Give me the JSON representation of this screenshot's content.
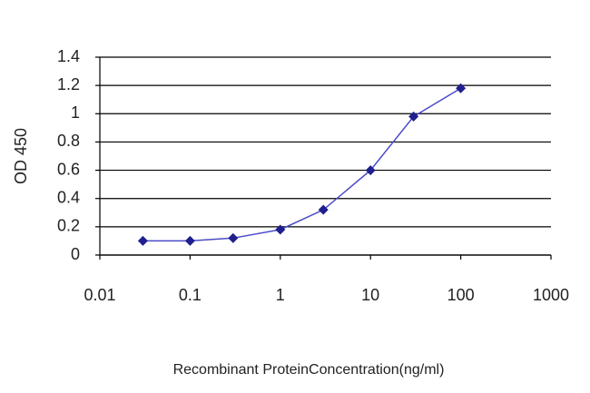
{
  "chart_data": {
    "type": "line",
    "x_label": "Recombinant ProteinConcentration(ng/ml)",
    "y_label": "OD 450",
    "x": [
      0.03,
      0.1,
      0.3,
      1,
      3,
      10,
      30,
      100
    ],
    "values": [
      0.1,
      0.1,
      0.12,
      0.18,
      0.32,
      0.6,
      0.98,
      1.18
    ],
    "color": "#1f1f8f",
    "line_color": "#4a4ac8",
    "xscale": "log",
    "xlim": [
      0.01,
      1000
    ],
    "xticks": [
      0.01,
      0.1,
      1,
      10,
      100,
      1000
    ],
    "ylim": [
      0,
      1.4
    ],
    "yticks": [
      0,
      0.2,
      0.4,
      0.6,
      0.8,
      1,
      1.2,
      1.4
    ],
    "grid": true
  }
}
